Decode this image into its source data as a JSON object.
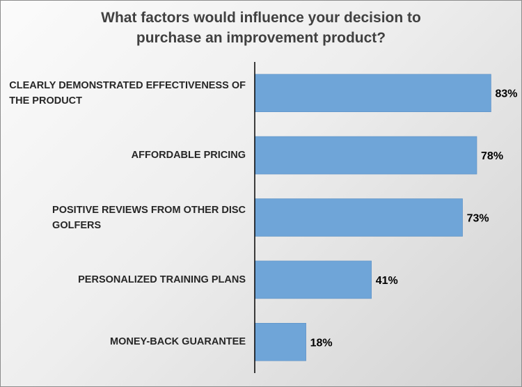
{
  "title_lines": [
    "What factors would influence your decision to",
    "purchase an improvement product?"
  ],
  "colors": {
    "bar": "#6fa5d8",
    "bar_stroke": "#5b8fc4",
    "axis": "#000000",
    "label": "#000000"
  },
  "chart_data": {
    "type": "bar",
    "orientation": "horizontal",
    "title": "What factors would influence your decision to purchase an improvement product?",
    "categories": [
      "CLEARLY DEMONSTRATED EFFECTIVENESS OF THE PRODUCT",
      "AFFORDABLE PRICING",
      "POSITIVE REVIEWS FROM OTHER DISC GOLFERS",
      "PERSONALIZED TRAINING PLANS",
      "MONEY-BACK GUARANTEE"
    ],
    "category_lines": [
      [
        "CLEARLY DEMONSTRATED EFFECTIVENESS OF",
        "THE PRODUCT"
      ],
      [
        "AFFORDABLE PRICING"
      ],
      [
        "POSITIVE REVIEWS FROM OTHER DISC",
        "GOLFERS"
      ],
      [
        "PERSONALIZED TRAINING PLANS"
      ],
      [
        "MONEY-BACK GUARANTEE"
      ]
    ],
    "values": [
      83,
      78,
      73,
      41,
      18
    ],
    "data_labels": [
      "83%",
      "78%",
      "73%",
      "41%",
      "18%"
    ],
    "unit": "%",
    "xlim": [
      0,
      100
    ],
    "grid": false,
    "legend": "none"
  }
}
